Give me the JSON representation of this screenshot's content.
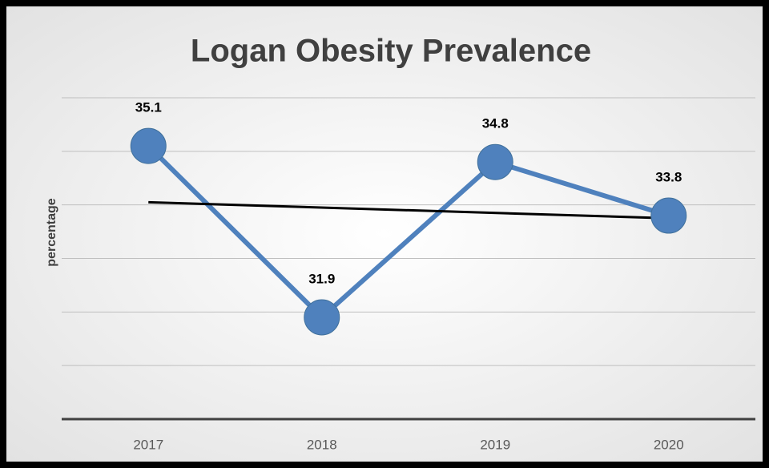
{
  "chart_data": {
    "type": "line",
    "title": "Logan Obesity Prevalence",
    "y_label": "percentage",
    "categories": [
      "2017",
      "2018",
      "2019",
      "2020"
    ],
    "series": [
      {
        "name": "Logan",
        "color": "#4f81bd",
        "values": [
          35.1,
          31.9,
          34.8,
          33.8
        ]
      }
    ],
    "ylim": [
      30,
      36
    ],
    "yticks": [
      30,
      31,
      32,
      33,
      34,
      35,
      36
    ],
    "grid": true,
    "trendline": true,
    "data_labels": true
  }
}
